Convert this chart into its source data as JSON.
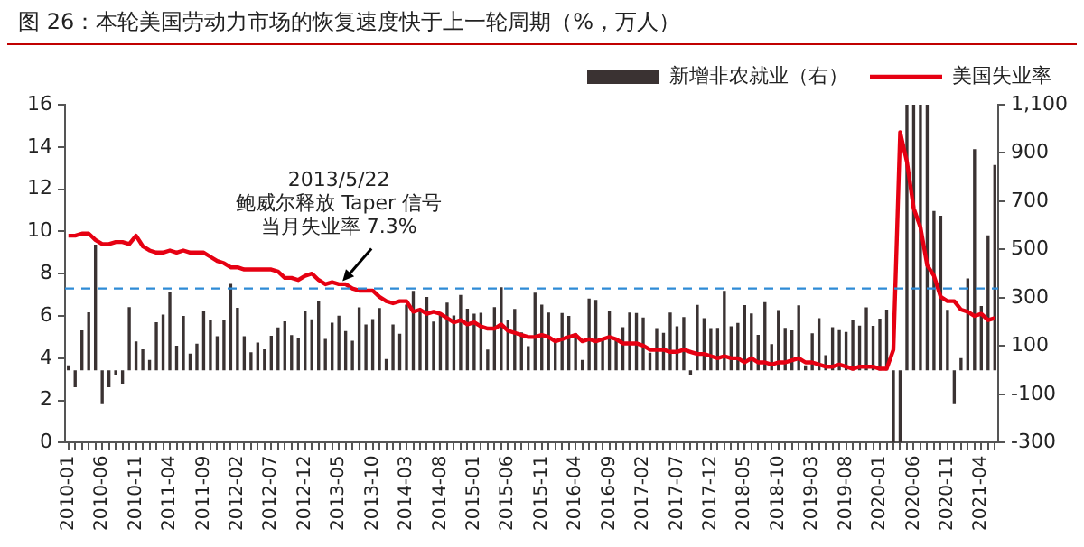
{
  "chart_data": {
    "type": "bar",
    "title": "图 26：本轮美国劳动力市场的恢复速度快于上一轮周期（%，万人）",
    "categories": [
      "2010-01",
      null,
      null,
      null,
      null,
      "2010-06",
      null,
      null,
      null,
      null,
      "2010-11",
      null,
      null,
      null,
      null,
      "2011-04",
      null,
      null,
      null,
      null,
      "2011-09",
      null,
      null,
      null,
      null,
      "2012-02",
      null,
      null,
      null,
      null,
      "2012-07",
      null,
      null,
      null,
      null,
      "2012-12",
      null,
      null,
      null,
      null,
      "2013-05",
      null,
      null,
      null,
      null,
      "2013-10",
      null,
      null,
      null,
      null,
      "2014-03",
      null,
      null,
      null,
      null,
      "2014-08",
      null,
      null,
      null,
      null,
      "2015-01",
      null,
      null,
      null,
      null,
      "2015-06",
      null,
      null,
      null,
      null,
      "2015-11",
      null,
      null,
      null,
      null,
      "2016-04",
      null,
      null,
      null,
      null,
      "2016-09",
      null,
      null,
      null,
      null,
      "2017-02",
      null,
      null,
      null,
      null,
      "2017-07",
      null,
      null,
      null,
      null,
      "2017-12",
      null,
      null,
      null,
      null,
      "2018-05",
      null,
      null,
      null,
      null,
      "2018-10",
      null,
      null,
      null,
      null,
      "2019-03",
      null,
      null,
      null,
      null,
      "2019-08",
      null,
      null,
      null,
      null,
      "2020-01",
      null,
      null,
      null,
      null,
      "2020-06",
      null,
      null,
      null,
      null,
      "2020-11",
      null,
      null,
      null,
      null,
      "2021-04",
      null,
      null
    ],
    "series": [
      {
        "name": "新增非农就业（右）",
        "axis": "y2",
        "color": "#3a3232",
        "values": [
          20,
          -70,
          165,
          240,
          520,
          -140,
          -70,
          -20,
          -55,
          262,
          119,
          87,
          43,
          199,
          231,
          322,
          102,
          225,
          69,
          110,
          246,
          209,
          141,
          209,
          358,
          259,
          141,
          75,
          115,
          87,
          143,
          177,
          203,
          146,
          132,
          244,
          211,
          286,
          130,
          197,
          226,
          162,
          122,
          261,
          190,
          212,
          258,
          47,
          190,
          151,
          272,
          329,
          246,
          304,
          202,
          230,
          280,
          227,
          312,
          255,
          234,
          238,
          86,
          262,
          344,
          206,
          254,
          157,
          100,
          321,
          272,
          239,
          126,
          237,
          225,
          153,
          43,
          297,
          291,
          135,
          247,
          124,
          178,
          239,
          237,
          219,
          73,
          175,
          155,
          239,
          182,
          220,
          -20,
          271,
          216,
          175,
          176,
          329,
          182,
          196,
          270,
          235,
          147,
          282,
          108,
          249,
          176,
          165,
          269,
          20,
          153,
          216,
          62,
          178,
          166,
          159,
          208,
          185,
          261,
          184,
          214,
          251,
          -300,
          -300,
          1100,
          1100,
          1100,
          1100,
          660,
          640,
          250,
          -140,
          50,
          380,
          916,
          266,
          559,
          850
        ]
      },
      {
        "name": "美国失业率",
        "type": "line",
        "color": "#e60012",
        "values": [
          9.8,
          9.8,
          9.9,
          9.9,
          9.6,
          9.4,
          9.4,
          9.5,
          9.5,
          9.4,
          9.8,
          9.3,
          9.1,
          9.0,
          9.0,
          9.1,
          9.0,
          9.1,
          9.0,
          9.0,
          9.0,
          8.8,
          8.6,
          8.5,
          8.3,
          8.3,
          8.2,
          8.2,
          8.2,
          8.2,
          8.2,
          8.1,
          7.8,
          7.8,
          7.7,
          7.9,
          8.0,
          7.7,
          7.5,
          7.6,
          7.5,
          7.5,
          7.3,
          7.2,
          7.2,
          7.2,
          6.9,
          6.7,
          6.6,
          6.7,
          6.7,
          6.2,
          6.3,
          6.1,
          6.2,
          6.1,
          5.9,
          5.7,
          5.8,
          5.6,
          5.7,
          5.5,
          5.4,
          5.4,
          5.6,
          5.3,
          5.2,
          5.1,
          5.0,
          5.0,
          5.1,
          5.0,
          4.8,
          4.9,
          5.0,
          5.1,
          4.8,
          4.9,
          4.8,
          4.9,
          5.0,
          4.9,
          4.7,
          4.7,
          4.7,
          4.6,
          4.4,
          4.4,
          4.4,
          4.3,
          4.3,
          4.4,
          4.3,
          4.2,
          4.2,
          4.1,
          4.0,
          4.1,
          4.0,
          4.0,
          3.8,
          4.0,
          3.8,
          3.8,
          3.7,
          3.8,
          3.8,
          3.9,
          4.0,
          3.8,
          3.8,
          3.7,
          3.6,
          3.6,
          3.7,
          3.6,
          3.5,
          3.6,
          3.6,
          3.6,
          3.5,
          3.5,
          4.4,
          14.7,
          13.3,
          11.1,
          10.2,
          8.4,
          7.9,
          6.9,
          6.7,
          6.7,
          6.3,
          6.2,
          6.0,
          6.1,
          5.8,
          5.9
        ]
      }
    ],
    "ylim": [
      0,
      16
    ],
    "yticks": [
      0,
      2,
      4,
      6,
      8,
      10,
      12,
      14,
      16
    ],
    "y2lim": [
      -300,
      1100
    ],
    "y2ticks": [
      -300,
      -100,
      100,
      300,
      500,
      700,
      900,
      {
        "value": 1100,
        "label": "1,100"
      }
    ],
    "ref_lines": [
      {
        "axis": "y",
        "value": 7.3,
        "color": "#2e8bd6",
        "line_style": "dashed"
      }
    ],
    "annotations": [
      "2013/5/22",
      "鲍威尔释放 Taper 信号",
      {
        "text": "当月失业率 7.3%",
        "x": "2013-05",
        "y": 7.3
      }
    ],
    "legend": "top",
    "marker": "none"
  }
}
